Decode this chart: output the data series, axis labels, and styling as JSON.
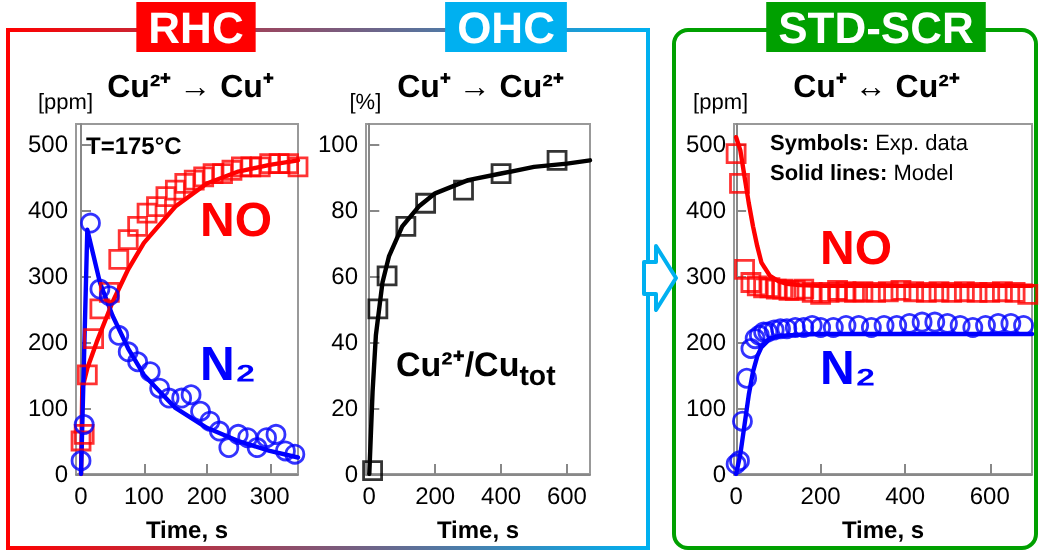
{
  "chart_data": [
    {
      "type": "line",
      "title": "RHC",
      "subtitle": "Cu²⁺ → Cu⁺",
      "xlabel": "Time, s",
      "ylabel": "[ppm]",
      "xlim": [
        -8,
        345
      ],
      "ylim": [
        0,
        530
      ],
      "xticks": [
        0,
        100,
        200,
        300
      ],
      "yticks": [
        0,
        100,
        200,
        300,
        400,
        500
      ],
      "annotations": [
        "T=175°C"
      ],
      "series": [
        {
          "name": "NO",
          "type": "scatter",
          "marker": "square",
          "color": "#ff0000",
          "x": [
            0,
            5,
            10,
            20,
            30,
            45,
            60,
            75,
            90,
            105,
            120,
            135,
            150,
            165,
            180,
            195,
            210,
            225,
            240,
            255,
            270,
            285,
            300,
            315,
            330,
            345
          ],
          "values": [
            50,
            60,
            150,
            205,
            250,
            275,
            325,
            355,
            375,
            395,
            405,
            420,
            430,
            440,
            445,
            450,
            455,
            455,
            460,
            465,
            465,
            465,
            470,
            470,
            470,
            465
          ]
        },
        {
          "type": "line",
          "marker": "none",
          "color": "#ff0000",
          "x": [
            0,
            2,
            10,
            25,
            50,
            75,
            100,
            150,
            200,
            250,
            300,
            345
          ],
          "values": [
            0,
            130,
            160,
            200,
            260,
            310,
            350,
            405,
            440,
            458,
            468,
            475
          ]
        },
        {
          "name": "N₂",
          "type": "scatter",
          "marker": "circle",
          "color": "#0000ff",
          "x": [
            0,
            5,
            15,
            30,
            45,
            60,
            75,
            90,
            110,
            125,
            140,
            160,
            175,
            190,
            205,
            220,
            235,
            250,
            265,
            280,
            295,
            310,
            325,
            340
          ],
          "values": [
            20,
            75,
            380,
            280,
            270,
            210,
            185,
            170,
            155,
            130,
            115,
            115,
            120,
            95,
            80,
            65,
            40,
            60,
            55,
            40,
            55,
            60,
            35,
            30
          ]
        },
        {
          "type": "line",
          "marker": "none",
          "color": "#0000ff",
          "x": [
            0,
            10,
            30,
            50,
            75,
            100,
            150,
            200,
            250,
            300,
            345
          ],
          "values": [
            0,
            370,
            290,
            240,
            190,
            150,
            100,
            70,
            50,
            35,
            25
          ]
        }
      ]
    },
    {
      "type": "line",
      "title": "OHC",
      "subtitle": "Cu⁺ → Cu²⁺",
      "xlabel": "Time, s",
      "ylabel": "[%]",
      "xlim": [
        -10,
        670
      ],
      "ylim": [
        0,
        106
      ],
      "xticks": [
        0,
        200,
        400,
        600
      ],
      "yticks": [
        0,
        20,
        40,
        60,
        80,
        100
      ],
      "series": [
        {
          "name": "Cu²⁺/Cu$_{tot}$",
          "type": "scatter",
          "marker": "square",
          "color": "#000000",
          "x": [
            10,
            26,
            54,
            111,
            171,
            286,
            400,
            570
          ],
          "values": [
            1,
            50,
            60,
            75,
            82,
            86,
            91,
            95
          ]
        },
        {
          "type": "line",
          "marker": "none",
          "color": "#000000",
          "x": [
            0,
            10,
            20,
            40,
            60,
            100,
            150,
            200,
            300,
            400,
            500,
            600,
            670
          ],
          "values": [
            0,
            25,
            42,
            58,
            66,
            75,
            81,
            85,
            89,
            91,
            93,
            94,
            95
          ]
        }
      ]
    },
    {
      "type": "line",
      "title": "STD-SCR",
      "subtitle": "Cu⁺ ↔ Cu²⁺",
      "xlabel": "Time, s",
      "ylabel": "[ppm]",
      "xlim": [
        -5,
        700
      ],
      "ylim": [
        0,
        530
      ],
      "xticks": [
        0,
        200,
        400,
        600
      ],
      "yticks": [
        0,
        100,
        200,
        300,
        400,
        500
      ],
      "annotations": [
        "Symbols: Exp. data",
        "Solid lines: Model"
      ],
      "series": [
        {
          "name": "NO",
          "type": "scatter",
          "marker": "square",
          "color": "#ff0000",
          "x": [
            0,
            8,
            20,
            35,
            50,
            65,
            80,
            95,
            110,
            125,
            140,
            160,
            180,
            200,
            220,
            240,
            260,
            280,
            300,
            330,
            360,
            390,
            420,
            450,
            480,
            510,
            540,
            570,
            600,
            630,
            660,
            690
          ],
          "values": [
            485,
            440,
            310,
            290,
            285,
            282,
            282,
            280,
            280,
            278,
            278,
            280,
            275,
            272,
            275,
            278,
            276,
            275,
            276,
            275,
            276,
            278,
            276,
            275,
            276,
            275,
            276,
            275,
            275,
            276,
            275,
            272
          ]
        },
        {
          "type": "line",
          "marker": "none",
          "color": "#ff0000",
          "x": [
            0,
            10,
            20,
            30,
            40,
            50,
            60,
            80,
            100,
            120,
            150,
            200,
            300,
            400,
            500,
            600,
            700
          ],
          "values": [
            510,
            490,
            450,
            410,
            375,
            345,
            320,
            300,
            292,
            288,
            286,
            285,
            285,
            285,
            285,
            285,
            285
          ]
        },
        {
          "name": "N₂",
          "type": "scatter",
          "marker": "circle",
          "color": "#0000ff",
          "x": [
            0,
            8,
            15,
            25,
            35,
            45,
            55,
            65,
            75,
            90,
            105,
            120,
            140,
            160,
            180,
            200,
            230,
            260,
            290,
            320,
            350,
            380,
            410,
            440,
            470,
            500,
            530,
            560,
            590,
            620,
            650,
            680
          ],
          "values": [
            15,
            20,
            80,
            145,
            190,
            205,
            210,
            215,
            215,
            218,
            220,
            220,
            222,
            222,
            225,
            222,
            222,
            225,
            225,
            222,
            225,
            225,
            228,
            230,
            230,
            228,
            225,
            222,
            225,
            228,
            228,
            225
          ]
        },
        {
          "type": "line",
          "marker": "none",
          "color": "#0000ff",
          "x": [
            0,
            10,
            20,
            30,
            40,
            50,
            60,
            80,
            100,
            150,
            200,
            300,
            400,
            500,
            600,
            700
          ],
          "values": [
            0,
            30,
            75,
            120,
            155,
            178,
            192,
            205,
            209,
            211,
            212,
            212,
            212,
            212,
            212,
            212
          ]
        }
      ]
    }
  ]
}
